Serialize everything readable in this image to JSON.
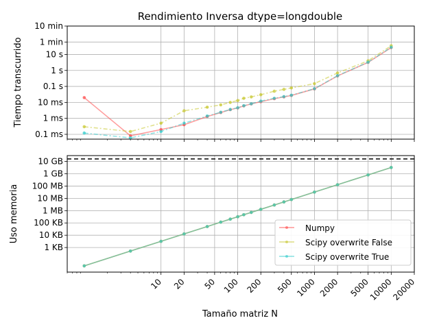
{
  "chart_data": [
    {
      "type": "line",
      "title": "Rendimiento Inversa dtype=longdouble",
      "xlabel": "",
      "ylabel": "Tiempo transcurrido",
      "xscale": "log",
      "yscale": "log",
      "xlim": [
        0.6,
        20000
      ],
      "ylim": [
        5e-05,
        600
      ],
      "grid": true,
      "y_ticks": [
        {
          "value": 0.0001,
          "label": "0.1 ms"
        },
        {
          "value": 0.001,
          "label": "1 ms"
        },
        {
          "value": 0.01,
          "label": "10 ms"
        },
        {
          "value": 0.1,
          "label": "0.1 s"
        },
        {
          "value": 1,
          "label": "1 s"
        },
        {
          "value": 10,
          "label": "10 s"
        },
        {
          "value": 60,
          "label": "1 min"
        },
        {
          "value": 600,
          "label": "10 min"
        }
      ],
      "series": [
        {
          "name": "Numpy",
          "color": "#ff4d4d",
          "x": [
            1,
            4,
            10,
            20,
            40,
            60,
            80,
            100,
            120,
            150,
            200,
            300,
            400,
            500,
            1000,
            2000,
            5000,
            10000
          ],
          "y": [
            0.02,
            8e-05,
            0.0002,
            0.0004,
            0.0013,
            0.0023,
            0.0035,
            0.0045,
            0.006,
            0.008,
            0.011,
            0.017,
            0.022,
            0.027,
            0.07,
            0.45,
            3.2,
            27
          ]
        },
        {
          "name": "Scipy overwrite False",
          "color": "#c8c832",
          "x": [
            1,
            4,
            10,
            20,
            40,
            60,
            80,
            100,
            120,
            150,
            200,
            300,
            400,
            500,
            1000,
            2000,
            5000,
            10000
          ],
          "y": [
            0.0003,
            0.00015,
            0.0005,
            0.003,
            0.005,
            0.007,
            0.01,
            0.013,
            0.018,
            0.022,
            0.03,
            0.05,
            0.065,
            0.08,
            0.15,
            0.7,
            4,
            35
          ]
        },
        {
          "name": "Scipy overwrite True",
          "color": "#33cccc",
          "x": [
            1,
            4,
            10,
            20,
            40,
            60,
            80,
            100,
            120,
            150,
            200,
            300,
            400,
            500,
            1000,
            2000,
            5000,
            10000
          ],
          "y": [
            0.00012,
            6e-05,
            0.00015,
            0.0005,
            0.0014,
            0.0024,
            0.0036,
            0.0046,
            0.0062,
            0.0082,
            0.012,
            0.018,
            0.023,
            0.028,
            0.072,
            0.47,
            3.3,
            28
          ]
        }
      ]
    },
    {
      "type": "line",
      "title": "",
      "xlabel": "Tamaño matriz N",
      "ylabel": "Uso memoria",
      "xscale": "log",
      "yscale": "log",
      "xlim": [
        0.6,
        20000
      ],
      "ylim": [
        10,
        30000000000
      ],
      "grid": true,
      "x_ticks": [
        {
          "value": 10,
          "label": "10"
        },
        {
          "value": 20,
          "label": "20"
        },
        {
          "value": 50,
          "label": "50"
        },
        {
          "value": 100,
          "label": "100"
        },
        {
          "value": 200,
          "label": "200"
        },
        {
          "value": 500,
          "label": "500"
        },
        {
          "value": 1000,
          "label": "1000"
        },
        {
          "value": 2000,
          "label": "2000"
        },
        {
          "value": 5000,
          "label": "5000"
        },
        {
          "value": 10000,
          "label": "10000"
        },
        {
          "value": 20000,
          "label": "20000"
        }
      ],
      "y_ticks": [
        {
          "value": 1000,
          "label": "1 KB"
        },
        {
          "value": 10000,
          "label": "10 KB"
        },
        {
          "value": 100000,
          "label": "100 KB"
        },
        {
          "value": 1000000,
          "label": "1 MB"
        },
        {
          "value": 10000000,
          "label": "10 MB"
        },
        {
          "value": 100000000,
          "label": "100 MB"
        },
        {
          "value": 1000000000,
          "label": "1 GB"
        },
        {
          "value": 10000000000,
          "label": "10 GB"
        }
      ],
      "reference_line": {
        "value": 16000000000,
        "style": "dashed",
        "color": "#000000"
      },
      "legend": {
        "position": "lower-right",
        "entries": [
          "Numpy",
          "Scipy overwrite False",
          "Scipy overwrite True"
        ]
      },
      "series": [
        {
          "name": "Numpy",
          "color": "#ff4d4d",
          "x": [
            1,
            4,
            10,
            20,
            40,
            60,
            80,
            100,
            120,
            150,
            200,
            300,
            400,
            500,
            1000,
            2000,
            5000,
            10000
          ],
          "y": [
            32,
            512,
            3200,
            12800,
            51200,
            115200,
            204800,
            320000,
            460800,
            720000,
            1280000,
            2880000,
            5120000,
            8000000,
            32000000,
            128000000,
            800000000,
            3200000000
          ]
        },
        {
          "name": "Scipy overwrite False",
          "color": "#c8c832",
          "x": [
            1,
            4,
            10,
            20,
            40,
            60,
            80,
            100,
            120,
            150,
            200,
            300,
            400,
            500,
            1000,
            2000,
            5000,
            10000
          ],
          "y": [
            32,
            512,
            3200,
            12800,
            51200,
            115200,
            204800,
            320000,
            460800,
            720000,
            1280000,
            2880000,
            5120000,
            8000000,
            32000000,
            128000000,
            800000000,
            3200000000
          ]
        },
        {
          "name": "Scipy overwrite True",
          "color": "#33cccc",
          "x": [
            1,
            4,
            10,
            20,
            40,
            60,
            80,
            100,
            120,
            150,
            200,
            300,
            400,
            500,
            1000,
            2000,
            5000,
            10000
          ],
          "y": [
            32,
            512,
            3200,
            12800,
            51200,
            115200,
            204800,
            320000,
            460800,
            720000,
            1280000,
            2880000,
            5120000,
            8000000,
            32000000,
            128000000,
            800000000,
            3200000000
          ]
        }
      ]
    }
  ]
}
